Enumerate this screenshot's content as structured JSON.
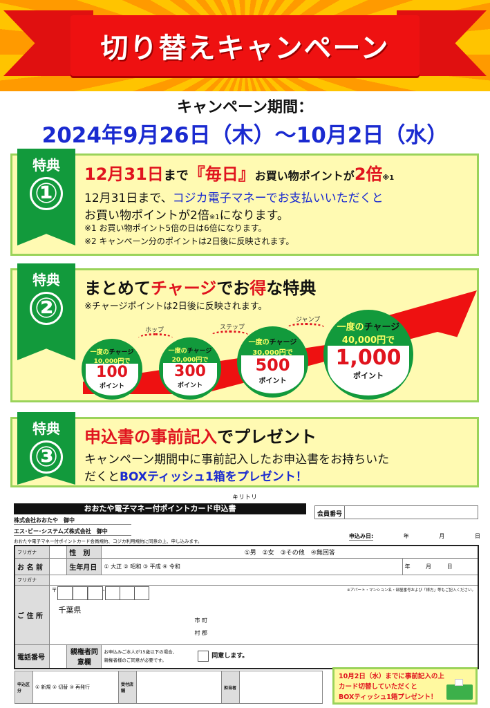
{
  "header": {
    "title": "切り替えキャンペーン"
  },
  "period": {
    "label": "キャンペーン期間：",
    "dates": "2024年9月26日（木）～10月2日（水）"
  },
  "perk1": {
    "badge": "特典",
    "num": "①",
    "h_a": "12月31日",
    "h_b": "まで",
    "h_c": "『毎日』",
    "h_d": "お買い物ポイントが",
    "h_e": "2倍",
    "h_f": "※1",
    "l1a": "12月31日まで、",
    "l1b": "コジカ電子マネーでお支払いいただくと",
    "l2a": "お買い物ポイントが2倍",
    "l2b": "※1",
    "l2c": "になります。",
    "n1": "※1 お買い物ポイント5倍の日は6倍になります。",
    "n2": "※2 キャンペーン分のポイントは2日後に反映されます。"
  },
  "perk2": {
    "badge": "特典",
    "num": "②",
    "h_a": "まとめて",
    "h_b": "チャージ",
    "h_c": "でお",
    "h_d": "得",
    "h_e": "な特典",
    "note": "※チャージポイントは2日後に反映されます。",
    "steps": [
      "ホップ",
      "ステップ",
      "ジャンプ"
    ],
    "tiers": [
      {
        "pre": "一度の",
        "pre2": "チャージ",
        "amount": "10,000円で",
        "points": "100",
        "unit": "ポイント"
      },
      {
        "pre": "一度の",
        "pre2": "チャージ",
        "amount": "20,000円で",
        "points": "300",
        "unit": "ポイント"
      },
      {
        "pre": "一度の",
        "pre2": "チャージ",
        "amount": "30,000円で",
        "points": "500",
        "unit": "ポイント"
      },
      {
        "pre": "一度の",
        "pre2": "チャージ",
        "amount": "40,000円で",
        "points": "1,000",
        "unit": "ポイント"
      }
    ]
  },
  "perk3": {
    "badge": "特典",
    "num": "③",
    "h_a": "申込書の事前記入",
    "h_b": "でプレゼント",
    "l1": "キャンペーン期間中に事前記入したお申込書をお持ちいた",
    "l2a": "だくと",
    "l2b": "BOXティッシュ1箱をプレゼント！"
  },
  "form": {
    "cut": "キリトリ",
    "title": "おおたや電子マネー付ポイントカード申込書",
    "member_no": "会員番号",
    "to1": "株式会社おおたや　御中",
    "to2": "エス･ビー･システムズ株式会社　御中",
    "agree": "おおたや電子マネー付ポイントカード会員規約、コジカ利用規約に同意の上、申し込みます。",
    "date_label": "申込み日:",
    "year": "年",
    "month": "月",
    "day": "日",
    "furigana": "フリガナ",
    "name": "お 名 前",
    "gender": "性　別",
    "gender_opts": "①男　②女　③その他　④無回答",
    "birth": "生年月日",
    "eras": "① 大正 ② 昭和 ③ 平成 ④ 令和",
    "address": "ご 住 所",
    "postal": "〒",
    "address_note": "※アパート・マンション名・部屋番号および「様方」等もご記入ください。",
    "pref": "千葉県",
    "city1": "市",
    "city2": "町",
    "city3": "村",
    "city4": "郡",
    "phone": "電話番号",
    "guardian": "親権者同意欄",
    "guardian_note1": "お申込みご本人が15歳以下の場合、",
    "guardian_note2": "親権者様のご同意が必要です。",
    "consent": "同意します。",
    "type_label": "申込区分",
    "type_opts": "① 新規 ② 切替 ③ 再発行",
    "store": "受付店舗",
    "staff": "担当者"
  },
  "promo": {
    "l1": "10月2日（水）までに事前記入の上",
    "l2": "カード切替していただくと",
    "l3": "BOXティッシュ1箱プレゼント！"
  }
}
